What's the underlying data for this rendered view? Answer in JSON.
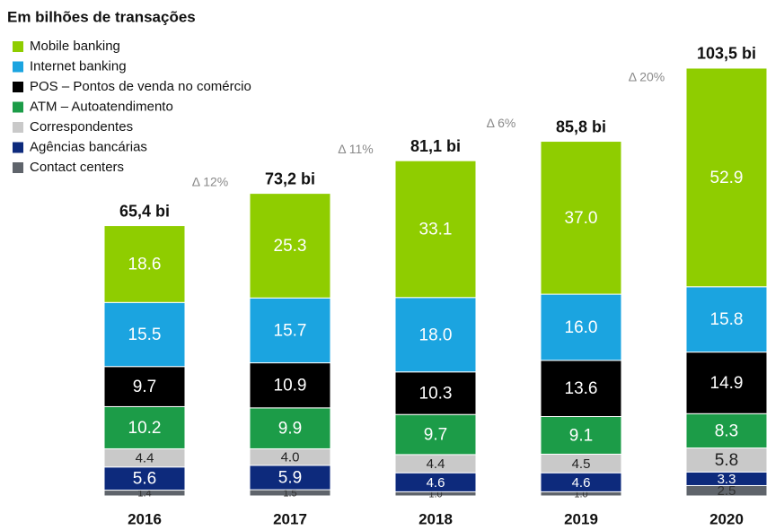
{
  "chart_data": {
    "type": "stacked_bar",
    "title": "Em bilhões de transações",
    "categories": [
      "2016",
      "2017",
      "2018",
      "2019",
      "2020"
    ],
    "series": [
      {
        "name": "Contact centers",
        "color": "#5f646b",
        "label_color": "#333333",
        "values": [
          1.4,
          1.5,
          1.0,
          1.0,
          2.5
        ],
        "value_labels": [
          "1.4",
          "1.5",
          "1.0",
          "1.0",
          "2.5"
        ]
      },
      {
        "name": "Agências bancárias",
        "color": "#0d2a7c",
        "label_color": "#ffffff",
        "values": [
          5.6,
          5.9,
          4.6,
          4.6,
          3.3
        ],
        "value_labels": [
          "5.6",
          "5.9",
          "4.6",
          "4.6",
          "3.3"
        ]
      },
      {
        "name": "Correspondentes",
        "color": "#c9c9c9",
        "label_color": "#222222",
        "values": [
          4.4,
          4.0,
          4.4,
          4.5,
          5.8
        ],
        "value_labels": [
          "4.4",
          "4.0",
          "4.4",
          "4.5",
          "5.8"
        ]
      },
      {
        "name": "ATM – Autoatendimento",
        "color": "#1c9c48",
        "label_color": "#ffffff",
        "values": [
          10.2,
          9.9,
          9.7,
          9.1,
          8.3
        ],
        "value_labels": [
          "10.2",
          "9.9",
          "9.7",
          "9.1",
          "8.3"
        ]
      },
      {
        "name": "POS – Pontos de venda no comércio",
        "color": "#000000",
        "label_color": "#ffffff",
        "values": [
          9.7,
          10.9,
          10.3,
          13.6,
          14.9
        ],
        "value_labels": [
          "9.7",
          "10.9",
          "10.3",
          "13.6",
          "14.9"
        ]
      },
      {
        "name": "Internet banking",
        "color": "#1ba4e0",
        "label_color": "#ffffff",
        "values": [
          15.5,
          15.7,
          18.0,
          16.0,
          15.8
        ],
        "value_labels": [
          "15.5",
          "15.7",
          "18.0",
          "16.0",
          "15.8"
        ]
      },
      {
        "name": "Mobile banking",
        "color": "#8fcd00",
        "label_color": "#ffffff",
        "values": [
          18.6,
          25.3,
          33.1,
          37.0,
          52.9
        ],
        "value_labels": [
          "18.6",
          "25.3",
          "33.1",
          "37.0",
          "52.9"
        ]
      }
    ],
    "total_labels": [
      "65,4 bi",
      "73,2 bi",
      "81,1 bi",
      "85,8 bi",
      "103,5 bi"
    ],
    "growth_labels": [
      "Δ 12%",
      "Δ 11%",
      "Δ 6%",
      "Δ 20%"
    ],
    "ylim": [
      0,
      110
    ]
  }
}
